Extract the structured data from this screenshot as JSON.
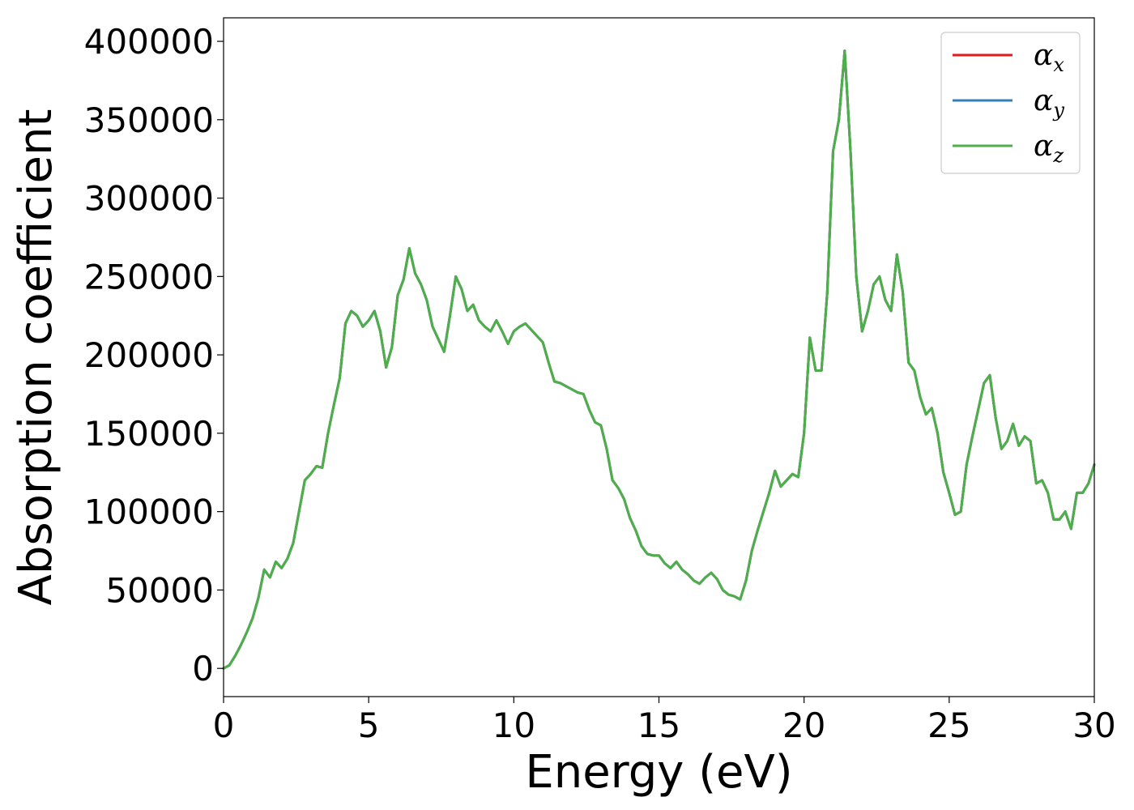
{
  "chart_data": {
    "type": "line",
    "title": "",
    "xlabel": "Energy (eV)",
    "ylabel": "Absorption coefficient",
    "xlim": [
      0,
      30
    ],
    "ylim": [
      -18000,
      415000
    ],
    "xticks": [
      0,
      5,
      10,
      15,
      20,
      25,
      30
    ],
    "yticks": [
      0,
      50000,
      100000,
      150000,
      200000,
      250000,
      300000,
      350000,
      400000
    ],
    "xtick_labels": [
      "0",
      "5",
      "10",
      "15",
      "20",
      "25",
      "30"
    ],
    "ytick_labels": [
      "0",
      "50000",
      "100000",
      "150000",
      "200000",
      "250000",
      "300000",
      "350000",
      "400000"
    ],
    "grid": false,
    "legend": {
      "placement": "top-right",
      "entries": [
        {
          "symbol": "α",
          "sub": "x",
          "color": "#e41a1c"
        },
        {
          "symbol": "α",
          "sub": "y",
          "color": "#377eb8"
        },
        {
          "symbol": "α",
          "sub": "z",
          "color": "#4daf4a"
        }
      ]
    },
    "series_colors": [
      "#e41a1c",
      "#377eb8",
      "#4daf4a"
    ],
    "x": [
      0,
      0.2,
      0.4,
      0.6,
      0.8,
      1.0,
      1.2,
      1.4,
      1.6,
      1.8,
      2.0,
      2.2,
      2.4,
      2.6,
      2.8,
      3.0,
      3.2,
      3.4,
      3.6,
      3.8,
      4.0,
      4.2,
      4.4,
      4.6,
      4.8,
      5.0,
      5.2,
      5.4,
      5.6,
      5.8,
      6.0,
      6.2,
      6.4,
      6.6,
      6.8,
      7.0,
      7.2,
      7.4,
      7.6,
      7.8,
      8.0,
      8.2,
      8.4,
      8.6,
      8.8,
      9.0,
      9.2,
      9.4,
      9.6,
      9.8,
      10.0,
      10.2,
      10.4,
      10.6,
      10.8,
      11.0,
      11.2,
      11.4,
      11.6,
      11.8,
      12.0,
      12.2,
      12.4,
      12.6,
      12.8,
      13.0,
      13.2,
      13.4,
      13.6,
      13.8,
      14.0,
      14.2,
      14.4,
      14.6,
      14.8,
      15.0,
      15.2,
      15.4,
      15.6,
      15.8,
      16.0,
      16.2,
      16.4,
      16.6,
      16.8,
      17.0,
      17.2,
      17.4,
      17.6,
      17.8,
      18.0,
      18.2,
      18.4,
      18.6,
      18.8,
      19.0,
      19.2,
      19.4,
      19.6,
      19.8,
      20.0,
      20.2,
      20.4,
      20.6,
      20.8,
      21.0,
      21.2,
      21.4,
      21.6,
      21.8,
      22.0,
      22.2,
      22.4,
      22.6,
      22.8,
      23.0,
      23.2,
      23.4,
      23.6,
      23.8,
      24.0,
      24.2,
      24.4,
      24.6,
      24.8,
      25.0,
      25.2,
      25.4,
      25.6,
      25.8,
      26.0,
      26.2,
      26.4,
      26.6,
      26.8,
      27.0,
      27.2,
      27.4,
      27.6,
      27.8,
      28.0,
      28.2,
      28.4,
      28.6,
      28.8,
      29.0,
      29.2,
      29.4,
      29.6,
      29.8,
      30.0
    ],
    "series": [
      {
        "name": "α_x",
        "color": "#e41a1c",
        "values": [
          0,
          2000,
          8000,
          15000,
          23000,
          32000,
          45000,
          63000,
          58000,
          68000,
          64000,
          70000,
          80000,
          100000,
          120000,
          124000,
          129000,
          128000,
          150000,
          168000,
          185000,
          220000,
          228000,
          225000,
          218000,
          222000,
          228000,
          215000,
          192000,
          205000,
          238000,
          248000,
          268000,
          252000,
          245000,
          235000,
          218000,
          210000,
          202000,
          225000,
          250000,
          242000,
          228000,
          232000,
          222000,
          218000,
          215000,
          222000,
          215000,
          207000,
          215000,
          218000,
          220000,
          216000,
          212000,
          208000,
          195000,
          183000,
          182000,
          180000,
          178000,
          176000,
          175000,
          165000,
          157000,
          155000,
          140000,
          120000,
          115000,
          108000,
          96000,
          88000,
          78000,
          73000,
          72000,
          72000,
          67000,
          64000,
          68000,
          63000,
          60000,
          56000,
          54000,
          58000,
          61000,
          57000,
          50000,
          47000,
          46000,
          44000,
          56000,
          75000,
          88000,
          100000,
          112000,
          126000,
          116000,
          120000,
          124000,
          122000,
          150000,
          211000,
          190000,
          190000,
          240000,
          330000,
          350000,
          394000,
          330000,
          250000,
          215000,
          228000,
          245000,
          250000,
          235000,
          228000,
          264000,
          240000,
          195000,
          190000,
          173000,
          162000,
          166000,
          150000,
          125000,
          112000,
          98000,
          100000,
          130000,
          148000,
          165000,
          182000,
          187000,
          160000,
          140000,
          145000,
          156000,
          142000,
          148000,
          145000,
          118000,
          120000,
          112000,
          95000,
          95000,
          100000,
          89000,
          112000,
          112000,
          118000,
          130000
        ]
      },
      {
        "name": "α_y",
        "color": "#377eb8",
        "values": [
          0,
          2000,
          8000,
          15000,
          23000,
          32000,
          45000,
          63000,
          58000,
          68000,
          64000,
          70000,
          80000,
          100000,
          120000,
          124000,
          129000,
          128000,
          150000,
          168000,
          185000,
          220000,
          228000,
          225000,
          218000,
          222000,
          228000,
          215000,
          192000,
          205000,
          238000,
          248000,
          268000,
          252000,
          245000,
          235000,
          218000,
          210000,
          202000,
          225000,
          250000,
          242000,
          228000,
          232000,
          222000,
          218000,
          215000,
          222000,
          215000,
          207000,
          215000,
          218000,
          220000,
          216000,
          212000,
          208000,
          195000,
          183000,
          182000,
          180000,
          178000,
          176000,
          175000,
          165000,
          157000,
          155000,
          140000,
          120000,
          115000,
          108000,
          96000,
          88000,
          78000,
          73000,
          72000,
          72000,
          67000,
          64000,
          68000,
          63000,
          60000,
          56000,
          54000,
          58000,
          61000,
          57000,
          50000,
          47000,
          46000,
          44000,
          56000,
          75000,
          88000,
          100000,
          112000,
          126000,
          116000,
          120000,
          124000,
          122000,
          150000,
          211000,
          190000,
          190000,
          240000,
          330000,
          350000,
          394000,
          330000,
          250000,
          215000,
          228000,
          245000,
          250000,
          235000,
          228000,
          264000,
          240000,
          195000,
          190000,
          173000,
          162000,
          166000,
          150000,
          125000,
          112000,
          98000,
          100000,
          130000,
          148000,
          165000,
          182000,
          187000,
          160000,
          140000,
          145000,
          156000,
          142000,
          148000,
          145000,
          118000,
          120000,
          112000,
          95000,
          95000,
          100000,
          89000,
          112000,
          112000,
          118000,
          130000
        ]
      },
      {
        "name": "α_z",
        "color": "#4daf4a",
        "values": [
          0,
          2000,
          8000,
          15000,
          23000,
          32000,
          45000,
          63000,
          58000,
          68000,
          64000,
          70000,
          80000,
          100000,
          120000,
          124000,
          129000,
          128000,
          150000,
          168000,
          185000,
          220000,
          228000,
          225000,
          218000,
          222000,
          228000,
          215000,
          192000,
          205000,
          238000,
          248000,
          268000,
          252000,
          245000,
          235000,
          218000,
          210000,
          202000,
          225000,
          250000,
          242000,
          228000,
          232000,
          222000,
          218000,
          215000,
          222000,
          215000,
          207000,
          215000,
          218000,
          220000,
          216000,
          212000,
          208000,
          195000,
          183000,
          182000,
          180000,
          178000,
          176000,
          175000,
          165000,
          157000,
          155000,
          140000,
          120000,
          115000,
          108000,
          96000,
          88000,
          78000,
          73000,
          72000,
          72000,
          67000,
          64000,
          68000,
          63000,
          60000,
          56000,
          54000,
          58000,
          61000,
          57000,
          50000,
          47000,
          46000,
          44000,
          56000,
          75000,
          88000,
          100000,
          112000,
          126000,
          116000,
          120000,
          124000,
          122000,
          150000,
          211000,
          190000,
          190000,
          240000,
          330000,
          350000,
          394000,
          330000,
          250000,
          215000,
          228000,
          245000,
          250000,
          235000,
          228000,
          264000,
          240000,
          195000,
          190000,
          173000,
          162000,
          166000,
          150000,
          125000,
          112000,
          98000,
          100000,
          130000,
          148000,
          165000,
          182000,
          187000,
          160000,
          140000,
          145000,
          156000,
          142000,
          148000,
          145000,
          118000,
          120000,
          112000,
          95000,
          95000,
          100000,
          89000,
          112000,
          112000,
          118000,
          130000
        ]
      }
    ]
  }
}
